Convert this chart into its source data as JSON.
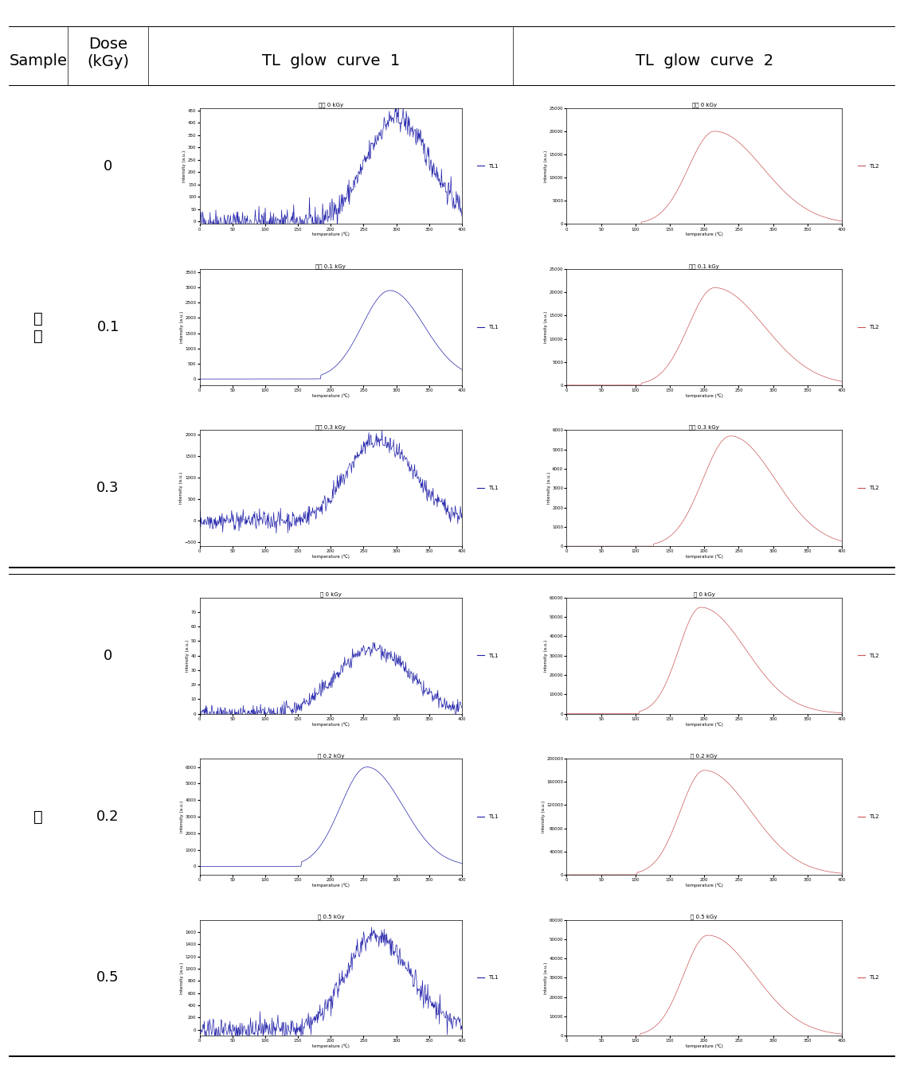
{
  "header": {
    "col0": "Sample",
    "col1": "Dose\n(kGy)",
    "col2": "TL  glow  curve  1",
    "col3": "TL  glow  curve  2"
  },
  "sections": [
    {
      "sample_label": "마\n널",
      "rows": [
        {
          "dose": "0",
          "tl1_title": "마널 0 kGy",
          "tl2_title": "마널 0 kGy",
          "tl1_ylim": [
            -10,
            460
          ],
          "tl1_yticks": [
            0,
            50,
            100,
            150,
            200,
            250,
            300,
            350,
            400,
            450
          ],
          "tl1_noisy": true,
          "tl1_peak_temp": 300,
          "tl1_peak_val": 420,
          "tl1_sigma_rise": 45,
          "tl1_sigma_fall": 50,
          "tl2_ylim": [
            0,
            25000
          ],
          "tl2_yticks": [
            0,
            5000,
            10000,
            15000,
            20000,
            25000
          ],
          "tl2_peak_temp": 215,
          "tl2_peak_val": 20000,
          "tl2_sigma_rise": 38,
          "tl2_sigma_fall": 70
        },
        {
          "dose": "0.1",
          "tl1_title": "마널 0.1 kGy",
          "tl2_title": "마널 0.1 kGy",
          "tl1_ylim": [
            -200,
            3600
          ],
          "tl1_yticks": [
            0,
            500,
            1000,
            1500,
            2000,
            2500,
            3000,
            3500
          ],
          "tl1_noisy": false,
          "tl1_peak_temp": 290,
          "tl1_peak_val": 2900,
          "tl1_sigma_rise": 42,
          "tl1_sigma_fall": 52,
          "tl2_ylim": [
            0,
            25000
          ],
          "tl2_yticks": [
            0,
            5000,
            10000,
            15000,
            20000,
            25000
          ],
          "tl2_peak_temp": 215,
          "tl2_peak_val": 21000,
          "tl2_sigma_rise": 38,
          "tl2_sigma_fall": 72
        },
        {
          "dose": "0.3",
          "tl1_title": "마널 0.3 kGy",
          "tl2_title": "마널 0.3 kGy",
          "tl1_ylim": [
            -600,
            2100
          ],
          "tl1_yticks": [
            -500,
            0,
            500,
            1000,
            1500,
            2000
          ],
          "tl1_noisy": true,
          "tl1_peak_temp": 270,
          "tl1_peak_val": 1850,
          "tl1_sigma_rise": 45,
          "tl1_sigma_fall": 55,
          "tl2_ylim": [
            0,
            6000
          ],
          "tl2_yticks": [
            0,
            1000,
            2000,
            3000,
            4000,
            5000,
            6000
          ],
          "tl2_peak_temp": 238,
          "tl2_peak_val": 5700,
          "tl2_sigma_rise": 40,
          "tl2_sigma_fall": 65
        }
      ]
    },
    {
      "sample_label": "밤",
      "rows": [
        {
          "dose": "0",
          "tl1_title": "밤 0 kGy",
          "tl2_title": "밤 0 kGy",
          "tl1_ylim": [
            0,
            80
          ],
          "tl1_yticks": [
            0,
            10,
            20,
            30,
            40,
            50,
            60,
            70
          ],
          "tl1_noisy": true,
          "tl1_peak_temp": 265,
          "tl1_peak_val": 45,
          "tl1_sigma_rise": 55,
          "tl1_sigma_fall": 55,
          "tl2_ylim": [
            0,
            60000
          ],
          "tl2_yticks": [
            0,
            10000,
            20000,
            30000,
            40000,
            50000,
            60000
          ],
          "tl2_peak_temp": 195,
          "tl2_peak_val": 55000,
          "tl2_sigma_rise": 32,
          "tl2_sigma_fall": 65
        },
        {
          "dose": "0.2",
          "tl1_title": "밤 0.2 kGy",
          "tl2_title": "밤 0.2 kGy",
          "tl1_ylim": [
            -500,
            6500
          ],
          "tl1_yticks": [
            0,
            1000,
            2000,
            3000,
            4000,
            5000,
            6000
          ],
          "tl1_noisy": false,
          "tl1_peak_temp": 255,
          "tl1_peak_val": 6000,
          "tl1_sigma_rise": 40,
          "tl1_sigma_fall": 55,
          "tl2_ylim": [
            0,
            200000
          ],
          "tl2_yticks": [
            0,
            40000,
            80000,
            120000,
            160000,
            200000
          ],
          "tl2_peak_temp": 200,
          "tl2_peak_val": 180000,
          "tl2_sigma_rise": 35,
          "tl2_sigma_fall": 68
        },
        {
          "dose": "0.5",
          "tl1_title": "밤 0.5 kGy",
          "tl2_title": "밤 0.5 kGy",
          "tl1_ylim": [
            -100,
            1800
          ],
          "tl1_yticks": [
            0,
            200,
            400,
            600,
            800,
            1000,
            1200,
            1400,
            1600
          ],
          "tl1_noisy": true,
          "tl1_peak_temp": 265,
          "tl1_peak_val": 1550,
          "tl1_sigma_rise": 42,
          "tl1_sigma_fall": 55,
          "tl2_ylim": [
            0,
            60000
          ],
          "tl2_yticks": [
            0,
            10000,
            20000,
            30000,
            40000,
            50000,
            60000
          ],
          "tl2_peak_temp": 205,
          "tl2_peak_val": 52000,
          "tl2_sigma_rise": 35,
          "tl2_sigma_fall": 68
        }
      ]
    }
  ],
  "blue_color": "#2222aa",
  "red_color": "#cc5555",
  "bg_color": "#ffffff",
  "font_size_title": 5,
  "font_size_axis": 4,
  "font_size_tick": 4,
  "font_size_legend": 5,
  "font_size_header": 14,
  "font_size_dose": 13,
  "font_size_sample": 14
}
